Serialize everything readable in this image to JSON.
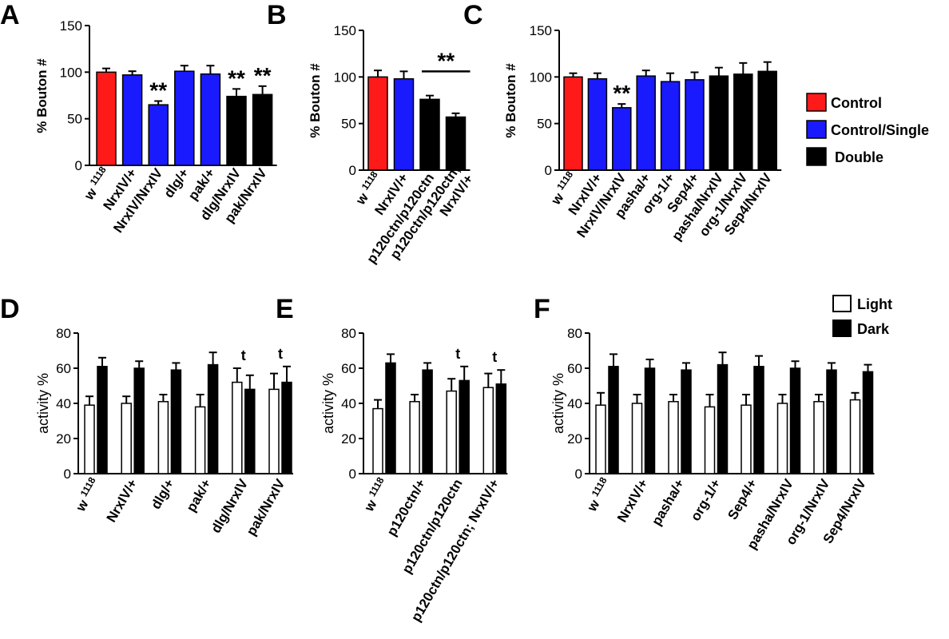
{
  "colors": {
    "control": "#ff1a1a",
    "single": "#1a1aff",
    "double": "#000000",
    "light": "#ffffff",
    "dark": "#000000"
  },
  "legend_top": [
    {
      "label": "Control",
      "color": "#ff1a1a"
    },
    {
      "label": "Control/Single",
      "color": "#1a1aff"
    },
    {
      "label": "Double",
      "color": "#000000"
    }
  ],
  "legend_bottom": [
    {
      "label": "Light",
      "color": "#ffffff"
    },
    {
      "label": "Dark",
      "color": "#000000"
    }
  ],
  "chart_data": [
    {
      "panel": "A",
      "type": "bar",
      "ylabel": "% Bouton #",
      "ylim": [
        0,
        150
      ],
      "yticks": [
        0,
        50,
        100,
        150
      ],
      "categories": [
        [
          "w",
          "1118"
        ],
        "NrxIV/+",
        "NrxIV/NrxIV",
        "dlg/+",
        "pak/+",
        "dlg/NrxIV",
        "pak/NrxIV"
      ],
      "values": [
        100,
        97,
        65,
        101,
        98,
        74,
        76
      ],
      "errors": [
        4,
        4,
        4,
        6,
        9,
        8,
        9
      ],
      "groups": [
        "control",
        "single",
        "single",
        "single",
        "single",
        "double",
        "double"
      ],
      "annotations": [
        {
          "index": 2,
          "text": "**"
        },
        {
          "index": 5,
          "text": "**"
        },
        {
          "index": 6,
          "text": "**"
        }
      ]
    },
    {
      "panel": "B",
      "type": "bar",
      "ylabel": "% Bouton #",
      "ylim": [
        0,
        150
      ],
      "yticks": [
        0,
        50,
        100,
        150
      ],
      "categories": [
        [
          "w",
          "1118"
        ],
        "NrxIV/+",
        "p120ctn/p120ctn",
        [
          "p120ctn/p120ctn;",
          "NrxIV/+"
        ]
      ],
      "values": [
        100,
        98,
        76,
        57
      ],
      "errors": [
        7,
        8,
        4,
        4
      ],
      "groups": [
        "control",
        "single",
        "double",
        "double"
      ],
      "bracket": {
        "from": 2,
        "to": 3,
        "text": "**"
      }
    },
    {
      "panel": "C",
      "type": "bar",
      "ylabel": "% Bouton #",
      "ylim": [
        0,
        150
      ],
      "yticks": [
        0,
        50,
        100,
        150
      ],
      "categories": [
        [
          "w",
          "1118"
        ],
        "NrxIV/+",
        "NrxIV/NrxIV",
        "pasha/+",
        "org-1/+",
        "Sep4/+",
        "pasha/NrxIV",
        "org-1/NrxIV",
        "Sep4/NrxIV"
      ],
      "values": [
        100,
        98,
        67,
        101,
        95,
        97,
        101,
        103,
        106
      ],
      "errors": [
        4,
        6,
        4,
        6,
        9,
        8,
        9,
        12,
        10
      ],
      "groups": [
        "control",
        "single",
        "single",
        "single",
        "single",
        "single",
        "double",
        "double",
        "double"
      ],
      "annotations": [
        {
          "index": 2,
          "text": "**"
        }
      ]
    },
    {
      "panel": "D",
      "type": "bar",
      "ylabel": "activity %",
      "ylim": [
        0,
        80
      ],
      "yticks": [
        0,
        20,
        40,
        60,
        80
      ],
      "categories": [
        [
          "w",
          "1118"
        ],
        "NrxIV/+",
        "dlg/+",
        "pak/+",
        "dlg/NrxIV",
        "pak/NrxIV"
      ],
      "series": [
        {
          "name": "Light",
          "values": [
            39,
            40,
            41,
            38,
            52,
            48
          ],
          "errors": [
            5,
            4,
            4,
            7,
            8,
            9
          ]
        },
        {
          "name": "Dark",
          "values": [
            61,
            60,
            59,
            62,
            48,
            52
          ],
          "errors": [
            5,
            4,
            4,
            7,
            8,
            9
          ]
        }
      ],
      "annotations": [
        {
          "index": 4,
          "text": "t"
        },
        {
          "index": 5,
          "text": "t"
        }
      ]
    },
    {
      "panel": "E",
      "type": "bar",
      "ylabel": "activity %",
      "ylim": [
        0,
        80
      ],
      "yticks": [
        0,
        20,
        40,
        60,
        80
      ],
      "categories": [
        [
          "w",
          "1118"
        ],
        "p120ctn/+",
        "p120ctn/p120ctn",
        "p120ctn/p120ctn; NrxIV/+"
      ],
      "series": [
        {
          "name": "Light",
          "values": [
            37,
            41,
            47,
            49
          ],
          "errors": [
            5,
            4,
            7,
            8
          ]
        },
        {
          "name": "Dark",
          "values": [
            63,
            59,
            53,
            51
          ],
          "errors": [
            5,
            4,
            8,
            8
          ]
        }
      ],
      "annotations": [
        {
          "index": 2,
          "text": "t"
        },
        {
          "index": 3,
          "text": "t"
        }
      ]
    },
    {
      "panel": "F",
      "type": "bar",
      "ylabel": "activity %",
      "ylim": [
        0,
        80
      ],
      "yticks": [
        0,
        20,
        40,
        60,
        80
      ],
      "categories": [
        [
          "w",
          "1118"
        ],
        "NrxIV/+",
        "pasha/+",
        "org-1/+",
        "Sep4/+",
        "pasha/NrxIV",
        "org-1/NrxIV",
        "Sep4/NrxIV"
      ],
      "series": [
        {
          "name": "Light",
          "values": [
            39,
            40,
            41,
            38,
            39,
            40,
            41,
            42
          ],
          "errors": [
            7,
            5,
            4,
            7,
            6,
            5,
            4,
            4
          ]
        },
        {
          "name": "Dark",
          "values": [
            61,
            60,
            59,
            62,
            61,
            60,
            59,
            58
          ],
          "errors": [
            7,
            5,
            4,
            7,
            6,
            4,
            4,
            4
          ]
        }
      ]
    }
  ]
}
